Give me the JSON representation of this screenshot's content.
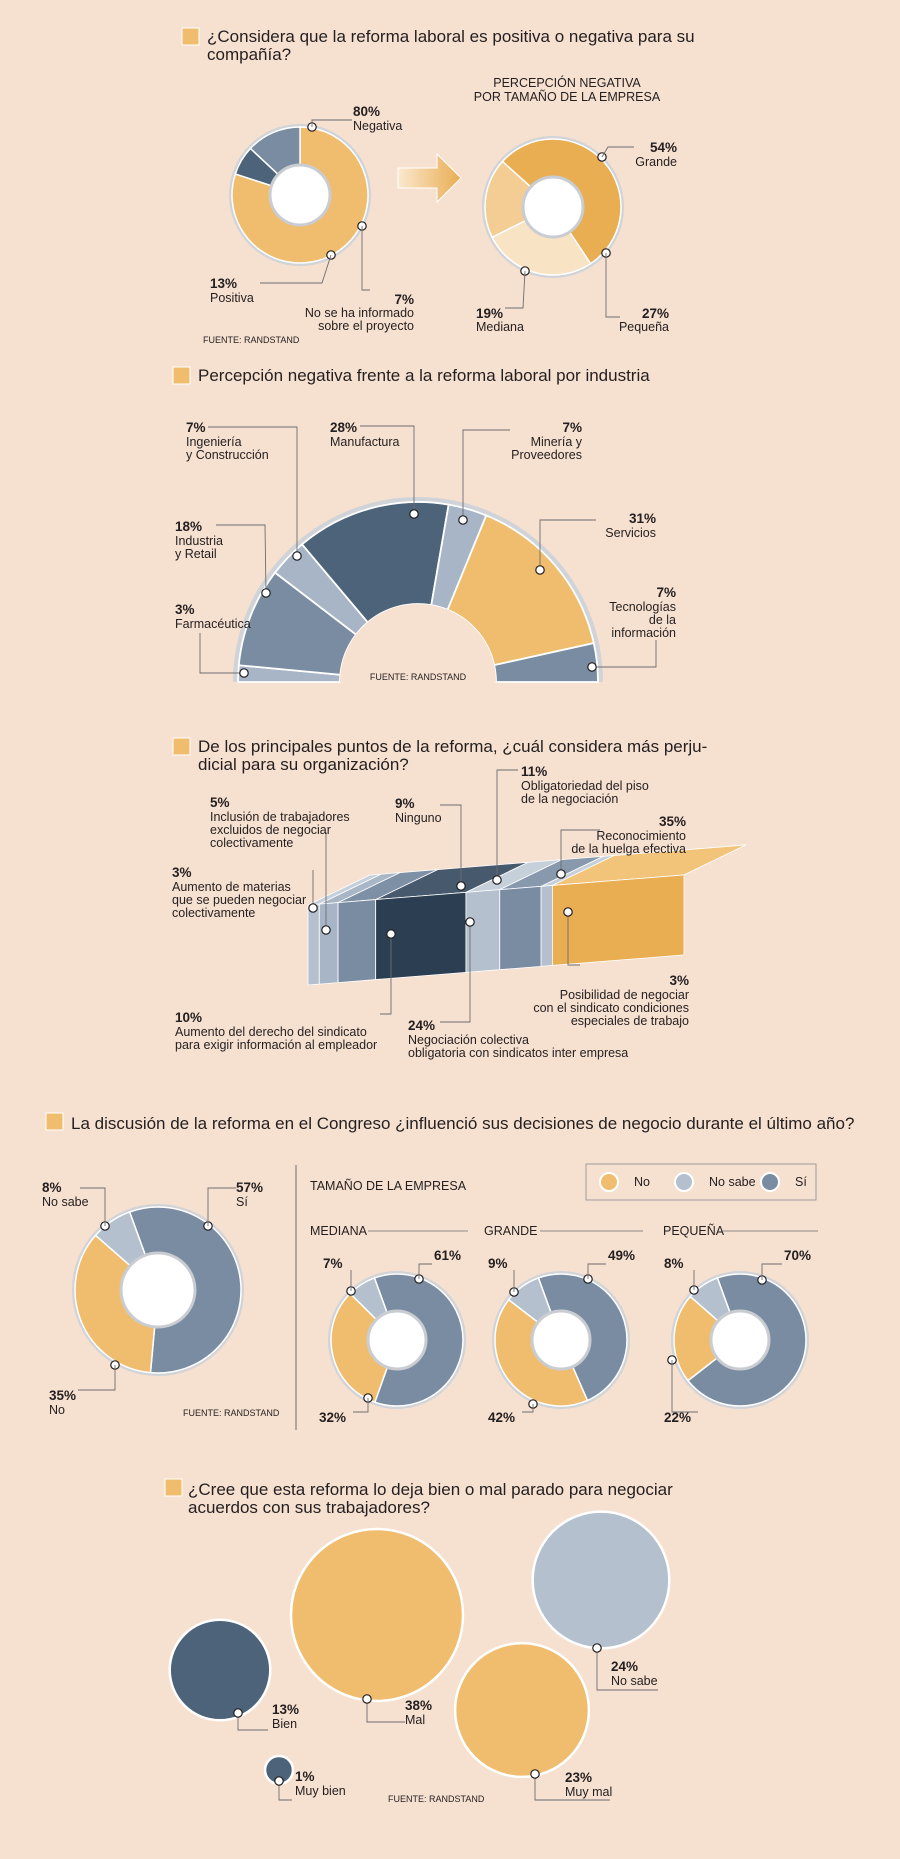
{
  "palette": {
    "background": "#f6e0d0",
    "yellow": "#f0bd6e",
    "yellow_dark": "#e9ad52",
    "yellow_light": "#f3cd94",
    "cream": "#f8e3c4",
    "slate": "#7a8ca2",
    "slate_dark": "#4c6379",
    "slate_light": "#a7b5c6",
    "grey_light": "#b4c0cd",
    "navy": "#2c3f52"
  },
  "source_label": "FUENTE: RANDSTAND",
  "section1": {
    "question": [
      "¿Considera que la reforma laboral es positiva o negativa para su",
      "compañía?"
    ],
    "right_title": [
      "PERCEPCIÓN NEGATIVA",
      "POR TAMAÑO DE LA EMPRESA"
    ],
    "arrow_icon": "arrow-right-icon"
  },
  "section2": {
    "question": [
      "Percepción negativa frente a la reforma laboral por industria"
    ]
  },
  "section3": {
    "question": [
      "De los principales puntos de la reforma, ¿cuál considera más perju-",
      "dicial para su organización?"
    ]
  },
  "section4": {
    "question": [
      "La discusión de la reforma en el Congreso ¿influenció sus decisiones de negocio durante el último año?"
    ],
    "size_title": "TAMAÑO DE LA EMPRESA",
    "legend": [
      {
        "label": "No",
        "color": "#f0bd6e"
      },
      {
        "label": "No sabe",
        "color": "#b4c0cd"
      },
      {
        "label": "Sí",
        "color": "#7a8ca2"
      }
    ]
  },
  "section5": {
    "question": [
      "¿Cree que esta reforma lo deja bien o mal parado para negociar",
      "acuerdos con sus trabajadores?"
    ]
  },
  "chart_data": [
    {
      "id": "s1-main",
      "type": "pie",
      "title": "¿Considera que la reforma laboral es positiva o negativa para su compañía?",
      "slices": [
        {
          "label": "Negativa",
          "value": 80,
          "pct": "80%"
        },
        {
          "label": "No se ha informado sobre el proyecto",
          "value": 7,
          "pct": "7%"
        },
        {
          "label": "Positiva",
          "value": 13,
          "pct": "13%"
        }
      ]
    },
    {
      "id": "s1-size",
      "type": "pie",
      "title": "PERCEPCIÓN NEGATIVA POR TAMAÑO DE LA EMPRESA",
      "slices": [
        {
          "label": "Grande",
          "value": 54,
          "pct": "54%"
        },
        {
          "label": "Pequeña",
          "value": 27,
          "pct": "27%"
        },
        {
          "label": "Mediana",
          "value": 19,
          "pct": "19%"
        }
      ]
    },
    {
      "id": "s2-industry",
      "type": "pie",
      "title": "Percepción negativa frente a la reforma laboral por industria",
      "slices": [
        {
          "label": "Farmacéutica",
          "value": 3,
          "pct": "3%"
        },
        {
          "label": "Industria y Retail",
          "value": 18,
          "pct": "18%"
        },
        {
          "label": "Ingeniería y Construcción",
          "value": 7,
          "pct": "7%"
        },
        {
          "label": "Manufactura",
          "value": 28,
          "pct": "28%"
        },
        {
          "label": "Minería y Proveedores",
          "value": 7,
          "pct": "7%"
        },
        {
          "label": "Servicios",
          "value": 31,
          "pct": "31%"
        },
        {
          "label": "Tecnologías de la información",
          "value": 7,
          "pct": "7%"
        }
      ]
    },
    {
      "id": "s3-points",
      "type": "bar",
      "title": "De los principales puntos de la reforma, ¿cuál considera más perjudicial para su organización?",
      "categories": [
        "Inclusión de trabajadores excluidos de negociar colectivamente",
        "Aumento de materias que se pueden negociar colectivamente",
        "Aumento del derecho del sindicato para exigir información al empleador",
        "Negociación colectiva obligatoria con sindicatos inter empresa",
        "Ninguno",
        "Obligatoriedad del piso de la negociación",
        "Posibilidad de negociar con el sindicato condiciones especiales de trabajo",
        "Reconocimiento de la huelga efectiva"
      ],
      "values": [
        5,
        3,
        10,
        24,
        9,
        11,
        3,
        35
      ],
      "pct": [
        "5%",
        "3%",
        "10%",
        "24%",
        "9%",
        "11%",
        "3%",
        "35%"
      ]
    },
    {
      "id": "s4-total",
      "type": "pie",
      "title": "La discusión de la reforma en el Congreso ¿influenció sus decisiones de negocio durante el último año?",
      "slices": [
        {
          "label": "Sí",
          "value": 57,
          "pct": "57%"
        },
        {
          "label": "No",
          "value": 35,
          "pct": "35%"
        },
        {
          "label": "No sabe",
          "value": 8,
          "pct": "8%"
        }
      ]
    },
    {
      "id": "s4-mediana",
      "type": "pie",
      "title": "MEDIANA",
      "slices": [
        {
          "label": "Sí",
          "value": 61,
          "pct": "61%"
        },
        {
          "label": "No",
          "value": 32,
          "pct": "32%"
        },
        {
          "label": "No sabe",
          "value": 7,
          "pct": "7%"
        }
      ]
    },
    {
      "id": "s4-grande",
      "type": "pie",
      "title": "GRANDE",
      "slices": [
        {
          "label": "Sí",
          "value": 49,
          "pct": "49%"
        },
        {
          "label": "No",
          "value": 42,
          "pct": "42%"
        },
        {
          "label": "No sabe",
          "value": 9,
          "pct": "9%"
        }
      ]
    },
    {
      "id": "s4-pequena",
      "type": "pie",
      "title": "PEQUEÑA",
      "slices": [
        {
          "label": "Sí",
          "value": 70,
          "pct": "70%"
        },
        {
          "label": "No",
          "value": 22,
          "pct": "22%"
        },
        {
          "label": "No sabe",
          "value": 8,
          "pct": "8%"
        }
      ]
    },
    {
      "id": "s5-bubbles",
      "type": "scatter",
      "title": "¿Cree que esta reforma lo deja bien o mal parado para negociar acuerdos con sus trabajadores?",
      "points": [
        {
          "label": "Bien",
          "value": 13,
          "pct": "13%"
        },
        {
          "label": "Mal",
          "value": 38,
          "pct": "38%"
        },
        {
          "label": "No sabe",
          "value": 24,
          "pct": "24%"
        },
        {
          "label": "Muy mal",
          "value": 23,
          "pct": "23%"
        },
        {
          "label": "Muy bien",
          "value": 1,
          "pct": "1%"
        }
      ]
    }
  ]
}
